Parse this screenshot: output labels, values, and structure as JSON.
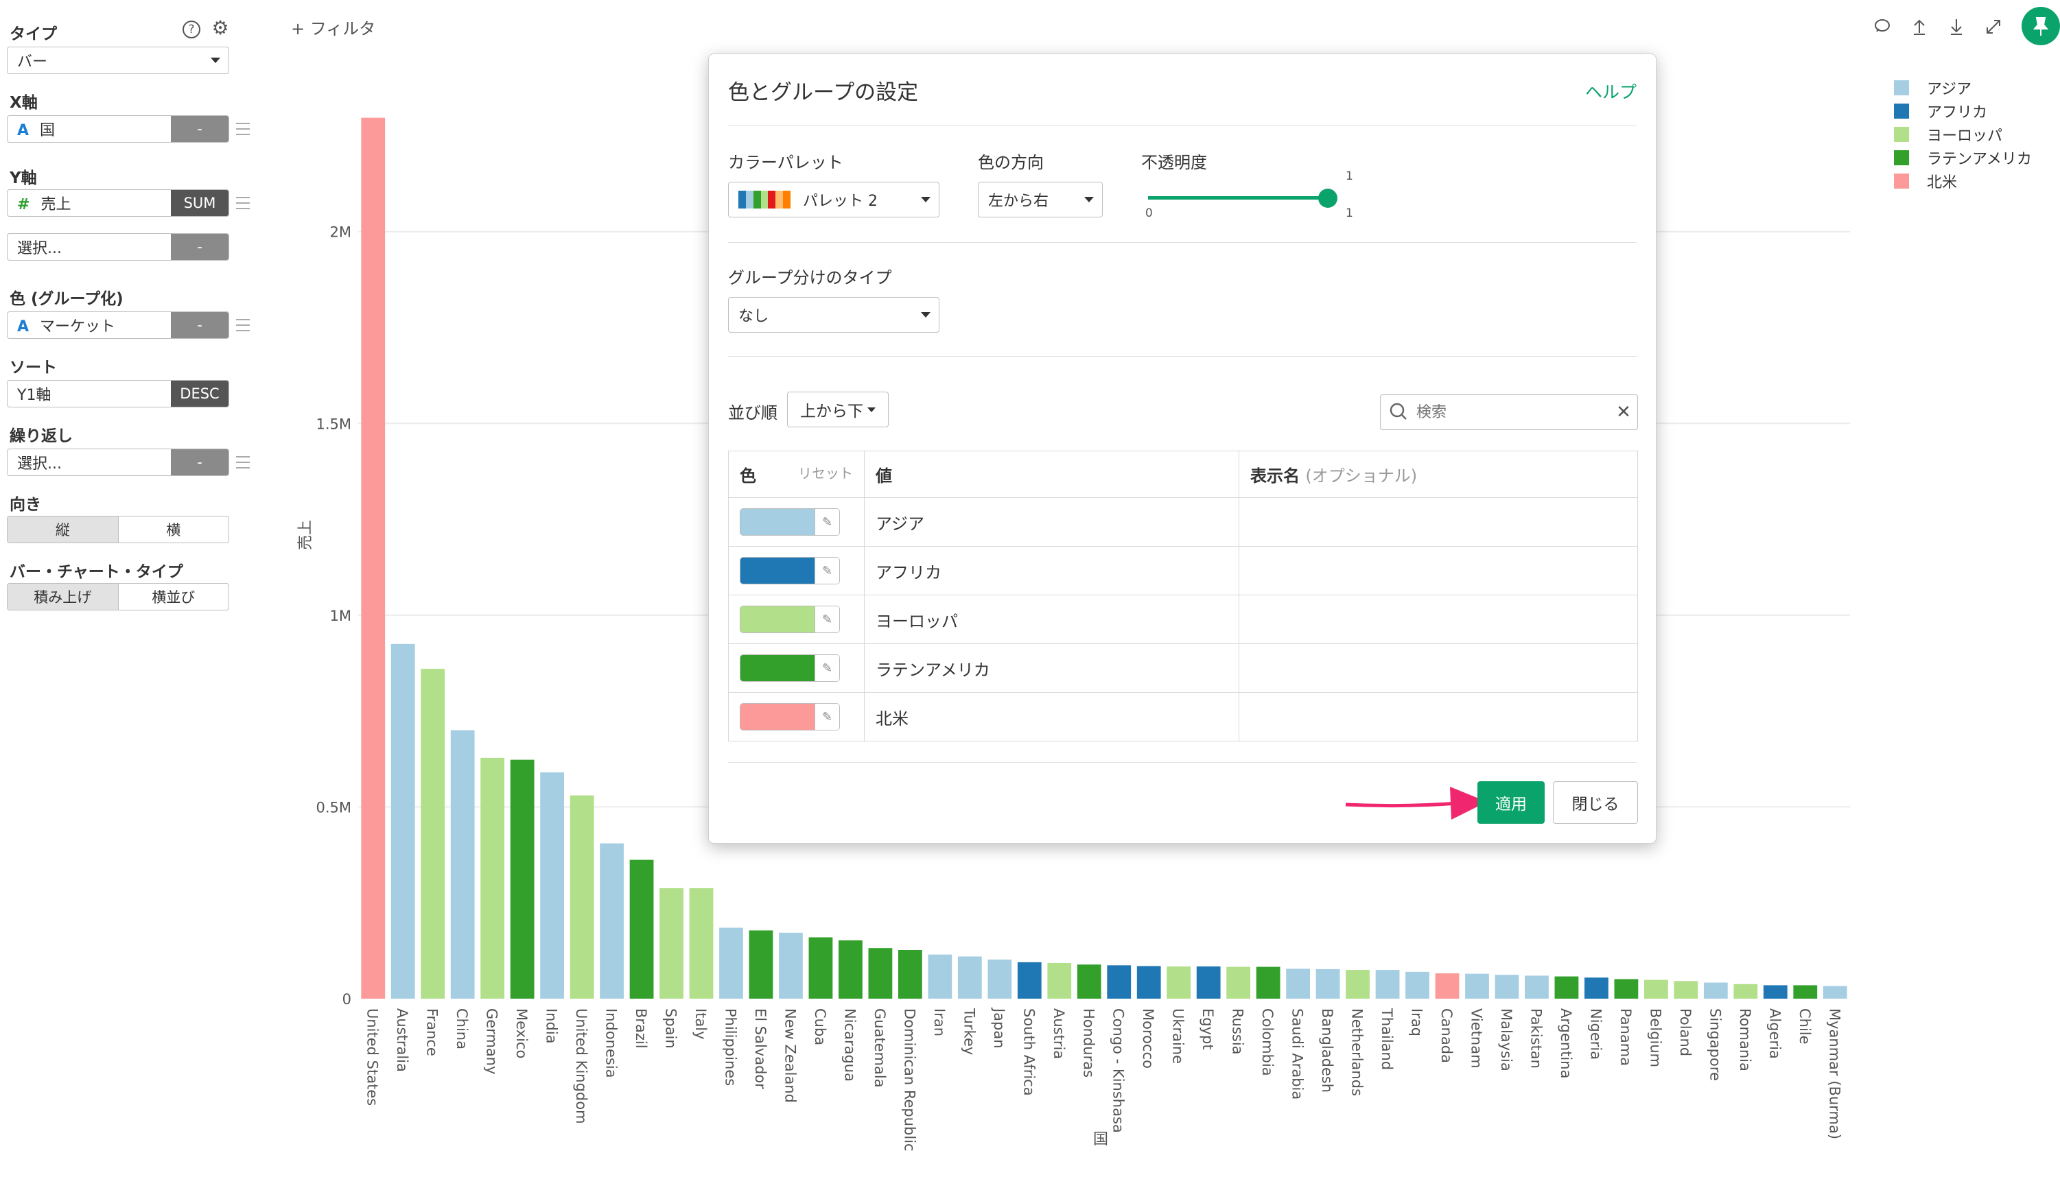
{
  "left_panel": {
    "type": {
      "label": "タイプ",
      "value": "バー"
    },
    "x_axis": {
      "label": "X軸",
      "field": "国",
      "button": "-"
    },
    "y_axis": {
      "label": "Y軸",
      "field": "売上",
      "button": "SUM"
    },
    "y_axis_extra": {
      "placeholder": "選択...",
      "button": "-"
    },
    "color": {
      "label": "色 (グループ化)",
      "field": "マーケット",
      "button": "-"
    },
    "sort": {
      "label": "ソート",
      "field": "Y1軸",
      "button": "DESC"
    },
    "repeat": {
      "label": "繰り返し",
      "placeholder": "選択...",
      "button": "-"
    },
    "orientation": {
      "label": "向き",
      "options": [
        "縦",
        "横"
      ],
      "selected": "縦"
    },
    "bar_type": {
      "label": "バー・チャート・タイプ",
      "options": [
        "積み上げ",
        "横並び"
      ],
      "selected": "積み上げ"
    }
  },
  "toolbar": {
    "filter_label": "+ フィルタ"
  },
  "top_icons": [
    "comment-icon",
    "upload-icon",
    "download-icon",
    "expand-icon",
    "pin-icon"
  ],
  "legend": [
    {
      "label": "アジア",
      "color": "#a6cee3"
    },
    {
      "label": "アフリカ",
      "color": "#1f78b4"
    },
    {
      "label": "ヨーロッパ",
      "color": "#b2df8a"
    },
    {
      "label": "ラテンアメリカ",
      "color": "#33a02c"
    },
    {
      "label": "北米",
      "color": "#fb9a99"
    }
  ],
  "chart_data": {
    "type": "bar",
    "xlabel": "国",
    "ylabel": "売上",
    "ylim": [
      0,
      2300000
    ],
    "yticks": [
      {
        "v": 0,
        "label": "0"
      },
      {
        "v": 500000,
        "label": "0.5M"
      },
      {
        "v": 1000000,
        "label": "1M"
      },
      {
        "v": 1500000,
        "label": "1.5M"
      },
      {
        "v": 2000000,
        "label": "2M"
      }
    ],
    "grid": true,
    "categories": [
      "United States",
      "Australia",
      "France",
      "China",
      "Germany",
      "Mexico",
      "India",
      "United Kingdom",
      "Indonesia",
      "Brazil",
      "Spain",
      "Italy",
      "Philippines",
      "El Salvador",
      "New Zealand",
      "Cuba",
      "Nicaragua",
      "Guatemala",
      "Dominican Republic",
      "Iran",
      "Turkey",
      "Japan",
      "South Africa",
      "Austria",
      "Honduras",
      "Congo - Kinshasa",
      "Morocco",
      "Ukraine",
      "Egypt",
      "Russia",
      "Colombia",
      "Saudi Arabia",
      "Bangladesh",
      "Netherlands",
      "Thailand",
      "Iraq",
      "Canada",
      "Vietnam",
      "Malaysia",
      "Pakistan",
      "Argentina",
      "Nigeria",
      "Panama",
      "Belgium",
      "Poland",
      "Singapore",
      "Romania",
      "Algeria",
      "Chile",
      "Myanmar (Burma)"
    ],
    "markets": [
      "北米",
      "アジア",
      "ヨーロッパ",
      "アジア",
      "ヨーロッパ",
      "ラテンアメリカ",
      "アジア",
      "ヨーロッパ",
      "アジア",
      "ラテンアメリカ",
      "ヨーロッパ",
      "ヨーロッパ",
      "アジア",
      "ラテンアメリカ",
      "アジア",
      "ラテンアメリカ",
      "ラテンアメリカ",
      "ラテンアメリカ",
      "ラテンアメリカ",
      "アジア",
      "アジア",
      "アジア",
      "アフリカ",
      "ヨーロッパ",
      "ラテンアメリカ",
      "アフリカ",
      "アフリカ",
      "ヨーロッパ",
      "アフリカ",
      "ヨーロッパ",
      "ラテンアメリカ",
      "アジア",
      "アジア",
      "ヨーロッパ",
      "アジア",
      "アジア",
      "北米",
      "アジア",
      "アジア",
      "アジア",
      "ラテンアメリカ",
      "アフリカ",
      "ラテンアメリカ",
      "ヨーロッパ",
      "ヨーロッパ",
      "アジア",
      "ヨーロッパ",
      "アフリカ",
      "ラテンアメリカ",
      "アジア"
    ],
    "values": [
      2297000,
      925000,
      860000,
      700000,
      628000,
      623000,
      590000,
      530000,
      405000,
      362000,
      288000,
      288000,
      185000,
      178000,
      172000,
      160000,
      152000,
      132000,
      127000,
      115000,
      110000,
      102000,
      95000,
      93000,
      89000,
      87000,
      85000,
      84000,
      84000,
      83000,
      83000,
      78000,
      77000,
      75000,
      75000,
      70000,
      66000,
      65000,
      62000,
      60000,
      58000,
      55000,
      51000,
      49000,
      46000,
      42000,
      38000,
      35000,
      35000,
      33000
    ]
  },
  "modal": {
    "title": "色とグループの設定",
    "help": "ヘルプ",
    "palette_label": "カラーパレット",
    "palette_value": "パレット 2",
    "direction_label": "色の方向",
    "direction_value": "左から右",
    "opacity_label": "不透明度",
    "opacity": {
      "min": "0",
      "max": "1",
      "value": 1,
      "value_label": "1"
    },
    "group_type_label": "グループ分けのタイプ",
    "group_type_value": "なし",
    "order_label": "並び順",
    "order_value": "上から下",
    "search_placeholder": "検索",
    "table_headers": {
      "color": "色",
      "reset": "リセット",
      "value": "値",
      "display_name": "表示名",
      "optional": "(オプショナル)"
    },
    "rows": [
      {
        "value": "アジア",
        "color": "#a6cee3",
        "display": ""
      },
      {
        "value": "アフリカ",
        "color": "#1f78b4",
        "display": ""
      },
      {
        "value": "ヨーロッパ",
        "color": "#b2df8a",
        "display": ""
      },
      {
        "value": "ラテンアメリカ",
        "color": "#33a02c",
        "display": ""
      },
      {
        "value": "北米",
        "color": "#fb9a99",
        "display": ""
      }
    ],
    "apply_label": "適用",
    "close_label": "閉じる"
  },
  "colors": {
    "accent": "#0aa36b",
    "arrow": "#f0266e"
  }
}
